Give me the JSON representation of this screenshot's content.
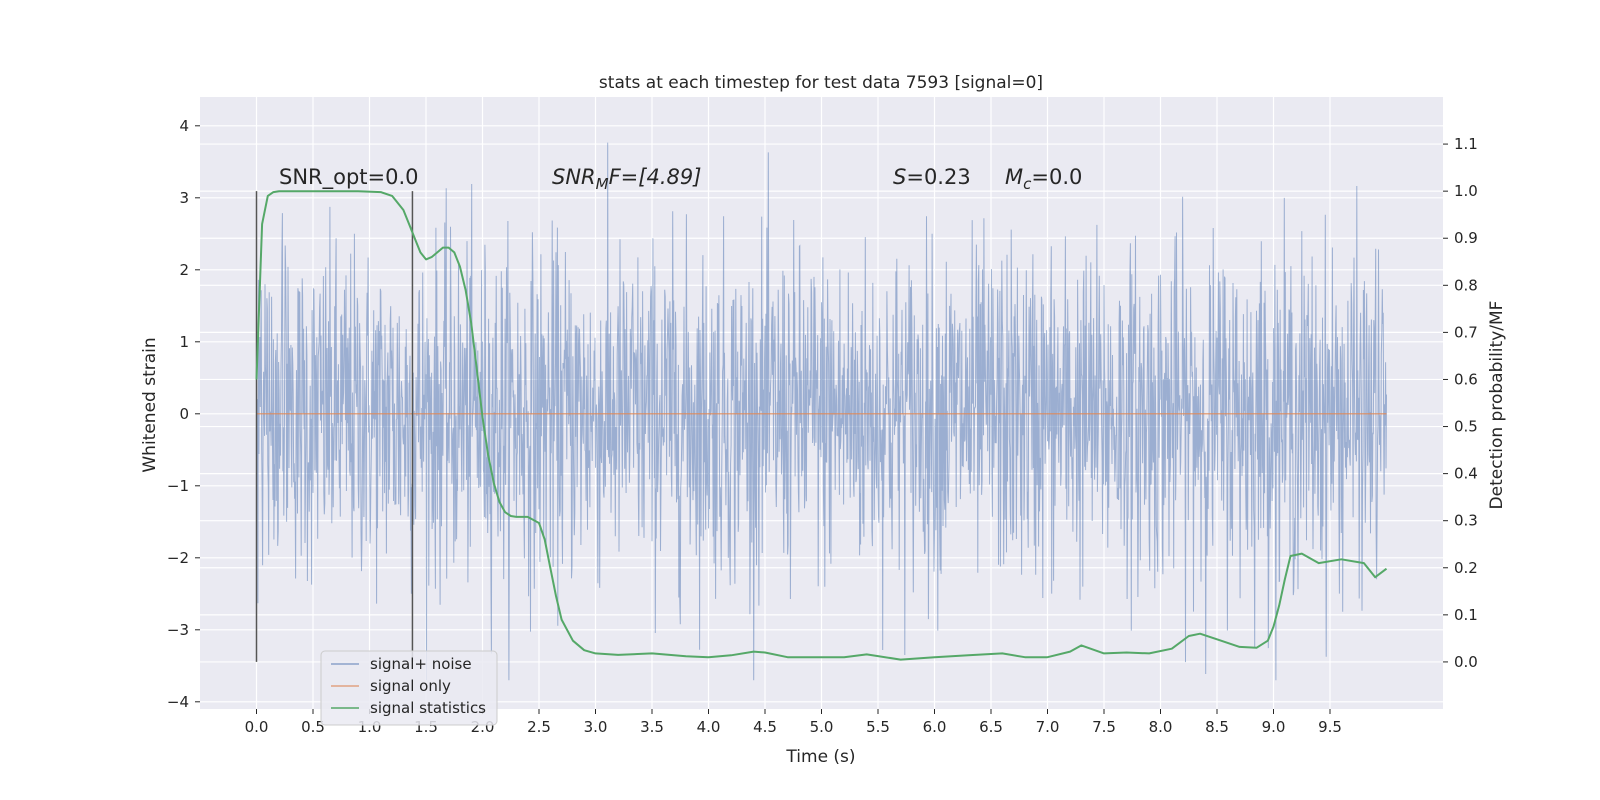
{
  "chart_data": {
    "type": "line",
    "title": "stats at each timestep for test data 7593 [signal=0]",
    "xlabel": "Time (s)",
    "ylabel": "Whitened strain",
    "y2label": "Detection probability/MF",
    "xlim": [
      -0.5,
      10.5
    ],
    "ylim": [
      -4.1,
      4.4
    ],
    "y2lim": [
      -0.1,
      1.2
    ],
    "x_ticks": [
      0.0,
      0.5,
      1.0,
      1.5,
      2.0,
      2.5,
      3.0,
      3.5,
      4.0,
      4.5,
      5.0,
      5.5,
      6.0,
      6.5,
      7.0,
      7.5,
      8.0,
      8.5,
      9.0,
      9.5
    ],
    "x_tick_labels": [
      "0.0",
      "0.5",
      "1.0",
      "1.5",
      "2.0",
      "2.5",
      "3.0",
      "3.5",
      "4.0",
      "4.5",
      "5.0",
      "5.5",
      "6.0",
      "6.5",
      "7.0",
      "7.5",
      "8.0",
      "8.5",
      "9.0",
      "9.5"
    ],
    "y_ticks": [
      4,
      3,
      2,
      1,
      0,
      -1,
      -2,
      -3,
      -4
    ],
    "y_tick_labels": [
      "4",
      "3",
      "2",
      "1",
      "0",
      "−1",
      "−2",
      "−3",
      "−4"
    ],
    "y2_ticks": [
      1.1,
      1.0,
      0.9,
      0.8,
      0.7,
      0.6,
      0.5,
      0.4,
      0.3,
      0.2,
      0.1,
      0.0
    ],
    "y2_tick_labels": [
      "1.1",
      "1.0",
      "0.9",
      "0.8",
      "0.7",
      "0.6",
      "0.5",
      "0.4",
      "0.3",
      "0.2",
      "0.1",
      "0.0"
    ],
    "grid": true,
    "legend_position": "bottom-left",
    "colors": {
      "noise": "#4c72b0",
      "signal_only": "#dd8452",
      "stats": "#55a868",
      "vline": "#555555",
      "background": "#eaeaf2",
      "grid": "#ffffff"
    },
    "series": [
      {
        "name": "signal+ noise",
        "axis": "left",
        "kind": "noise",
        "x_range": [
          0.0,
          10.0
        ],
        "approx_std": 1.0,
        "approx_min": -3.7,
        "approx_max": 4.05
      },
      {
        "name": "signal only",
        "axis": "left",
        "x": [
          0.0,
          10.0
        ],
        "y": [
          0.0,
          0.0
        ]
      },
      {
        "name": "signal statistics",
        "axis": "right",
        "x": [
          0.0,
          0.05,
          0.1,
          0.15,
          0.2,
          0.3,
          0.5,
          0.7,
          0.9,
          1.1,
          1.2,
          1.3,
          1.35,
          1.4,
          1.45,
          1.5,
          1.55,
          1.6,
          1.65,
          1.7,
          1.75,
          1.8,
          1.85,
          1.9,
          1.95,
          2.0,
          2.05,
          2.1,
          2.15,
          2.2,
          2.25,
          2.3,
          2.4,
          2.5,
          2.55,
          2.6,
          2.65,
          2.7,
          2.8,
          2.9,
          3.0,
          3.2,
          3.5,
          3.8,
          4.0,
          4.2,
          4.4,
          4.5,
          4.7,
          5.0,
          5.2,
          5.4,
          5.7,
          6.0,
          6.3,
          6.6,
          6.8,
          7.0,
          7.2,
          7.3,
          7.5,
          7.7,
          7.9,
          8.1,
          8.25,
          8.35,
          8.5,
          8.7,
          8.85,
          8.95,
          9.0,
          9.05,
          9.1,
          9.15,
          9.25,
          9.4,
          9.6,
          9.8,
          9.9,
          10.0
        ],
        "y": [
          0.6,
          0.93,
          0.99,
          0.998,
          1.0,
          1.0,
          1.0,
          1.0,
          1.0,
          0.998,
          0.99,
          0.96,
          0.93,
          0.9,
          0.87,
          0.855,
          0.86,
          0.87,
          0.88,
          0.88,
          0.87,
          0.84,
          0.79,
          0.72,
          0.62,
          0.52,
          0.44,
          0.38,
          0.34,
          0.318,
          0.31,
          0.308,
          0.308,
          0.295,
          0.26,
          0.2,
          0.14,
          0.09,
          0.045,
          0.025,
          0.018,
          0.015,
          0.018,
          0.012,
          0.01,
          0.014,
          0.022,
          0.02,
          0.01,
          0.01,
          0.01,
          0.016,
          0.005,
          0.01,
          0.014,
          0.018,
          0.01,
          0.01,
          0.022,
          0.035,
          0.018,
          0.02,
          0.018,
          0.028,
          0.055,
          0.06,
          0.048,
          0.032,
          0.03,
          0.045,
          0.075,
          0.12,
          0.175,
          0.225,
          0.23,
          0.21,
          0.218,
          0.21,
          0.18,
          0.198
        ]
      }
    ],
    "vlines": [
      0.0,
      1.38
    ],
    "annotations": [
      {
        "label": "SNR_opt=0.0"
      },
      {
        "label": "SNR",
        "sub": "M",
        "suffix": "F=[4.89]"
      },
      {
        "label": "S",
        "suffix": "=0.23"
      },
      {
        "label": "M",
        "sub": "c",
        "suffix": "=0.0"
      }
    ],
    "legend": [
      "signal+ noise",
      "signal only",
      "signal statistics"
    ]
  }
}
